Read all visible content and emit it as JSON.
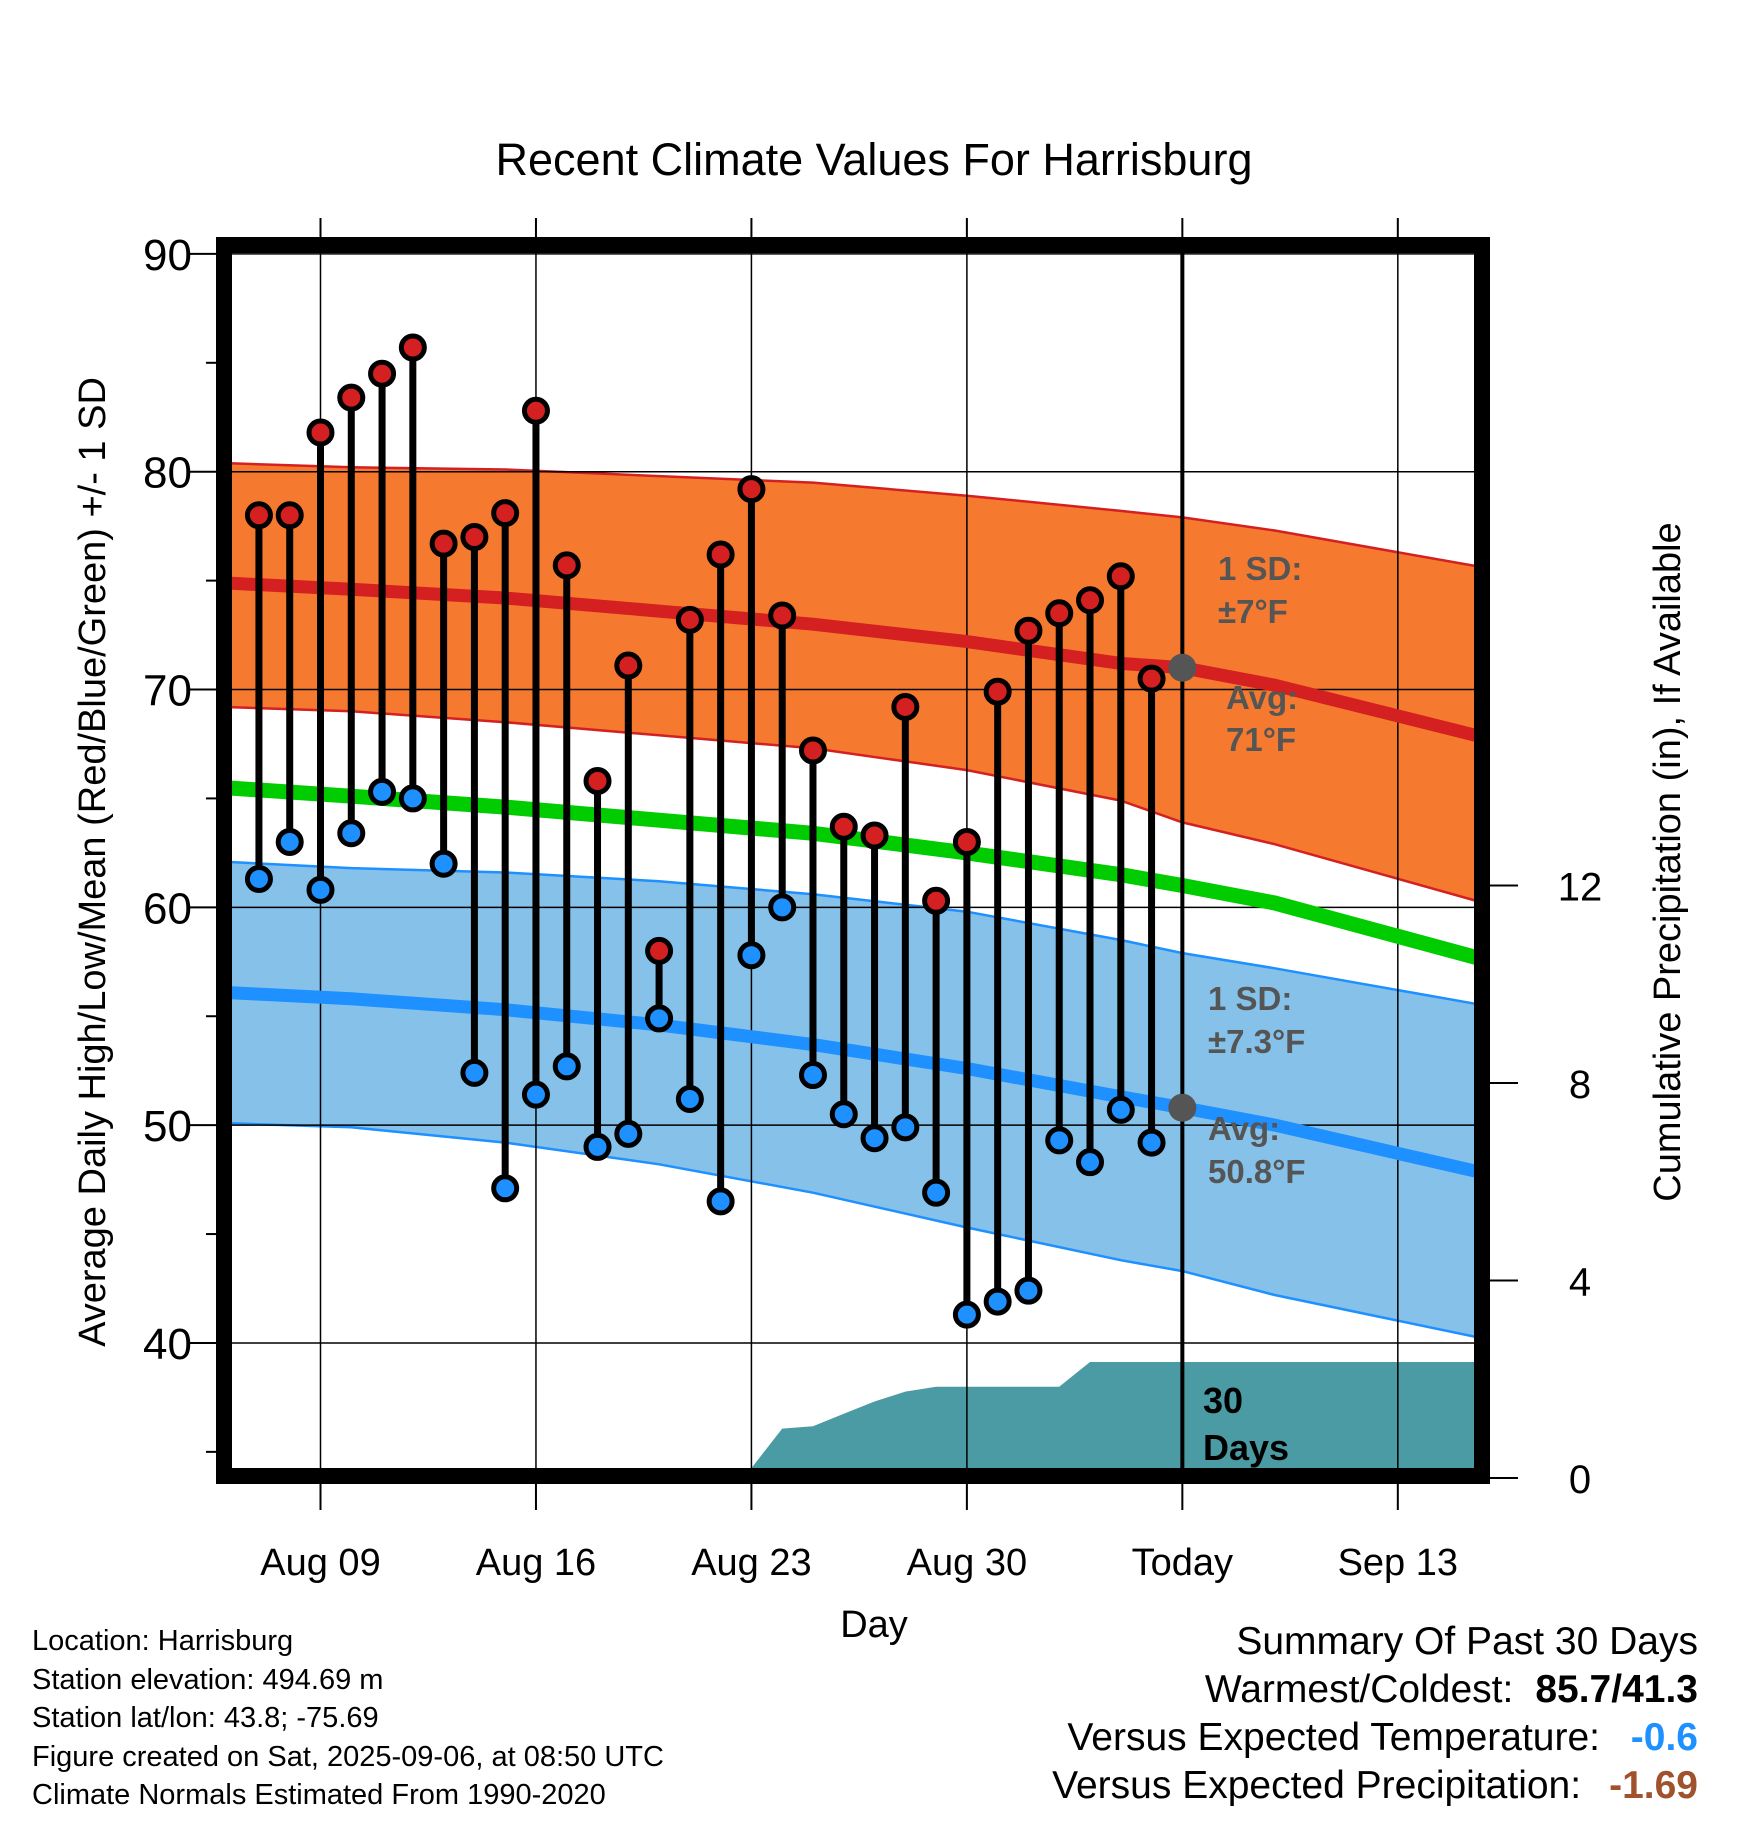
{
  "colors": {
    "high_band": "#f57a30",
    "high_band_edge": "#d42020",
    "high_normal": "#d42020",
    "mean_normal": "#00cc00",
    "low_band": "#85c1e8",
    "low_band_edge": "#1e90ff",
    "low_normal": "#1e90ff",
    "precip_fill": "#4a9ba3",
    "high_dot": "#d42020",
    "low_dot": "#1e90ff",
    "avg_marker": "#555555",
    "annotation_text": "#555555",
    "temp_anomaly": "#1e90ff",
    "precip_anomaly": "#a0522d"
  },
  "chart_data": {
    "type": "line",
    "title": "Recent Climate Values For Harrisburg",
    "xlabel": "Day",
    "ylabel": "Average Daily High/Low/Mean (Red/Blue/Green) +/- 1 SD",
    "y2label": "Cumulative Precipitation (in), If Available",
    "grid": true,
    "x_ticks": [
      {
        "day": 9,
        "label": "Aug 09"
      },
      {
        "day": 16,
        "label": "Aug 16"
      },
      {
        "day": 23,
        "label": "Aug 23"
      },
      {
        "day": 30,
        "label": "Aug 30"
      },
      {
        "day": 37,
        "label": "Today"
      },
      {
        "day": 44,
        "label": "Sep 13"
      }
    ],
    "xlim": [
      5.8,
      46.8
    ],
    "ylim": [
      33.8,
      90.5
    ],
    "y_ticks": [
      40,
      50,
      60,
      70,
      80,
      90
    ],
    "y2lim": [
      0,
      25
    ],
    "y2_ticks": [
      0,
      4,
      8,
      12
    ],
    "today_day": 37,
    "daily": {
      "days": [
        7,
        8,
        9,
        10,
        11,
        12,
        13,
        14,
        15,
        16,
        17,
        18,
        19,
        20,
        21,
        22,
        23,
        24,
        25,
        26,
        27,
        28,
        29,
        30,
        31,
        32,
        33,
        34,
        35,
        36
      ],
      "highs": [
        78.0,
        78.0,
        81.8,
        83.4,
        84.5,
        85.7,
        76.7,
        77.0,
        78.1,
        82.8,
        75.7,
        65.8,
        71.1,
        58.0,
        73.2,
        76.2,
        79.2,
        73.4,
        67.2,
        63.7,
        63.3,
        69.2,
        60.3,
        63.0,
        69.9,
        72.7,
        73.5,
        74.1,
        75.2,
        70.5
      ],
      "lows": [
        61.3,
        63.0,
        60.8,
        63.4,
        65.3,
        65.0,
        62.0,
        52.4,
        47.1,
        51.4,
        52.7,
        49.0,
        49.6,
        54.9,
        51.2,
        46.5,
        57.8,
        60.0,
        52.3,
        50.5,
        49.4,
        49.9,
        46.9,
        41.3,
        41.9,
        42.4,
        49.3,
        48.3,
        50.7,
        49.2
      ]
    },
    "normals": {
      "days": [
        5.8,
        10,
        15,
        20,
        25,
        30,
        35,
        37,
        40,
        46.8
      ],
      "high_avg": [
        74.9,
        74.6,
        74.2,
        73.6,
        73.0,
        72.2,
        71.2,
        71.0,
        70.2,
        67.8
      ],
      "high_upper": [
        80.4,
        80.2,
        80.1,
        79.8,
        79.5,
        78.9,
        78.2,
        77.9,
        77.3,
        75.6
      ],
      "high_lower": [
        69.2,
        69.0,
        68.5,
        67.9,
        67.3,
        66.3,
        64.9,
        63.9,
        62.9,
        60.2
      ],
      "mean_avg": [
        65.5,
        65.1,
        64.6,
        64.0,
        63.4,
        62.5,
        61.5,
        61.0,
        60.2,
        57.6
      ],
      "low_avg": [
        56.1,
        55.8,
        55.3,
        54.6,
        53.7,
        52.6,
        51.3,
        50.8,
        50.0,
        47.8
      ],
      "low_upper": [
        62.1,
        61.8,
        61.6,
        61.2,
        60.6,
        59.8,
        58.5,
        57.9,
        57.2,
        55.5
      ],
      "low_lower": [
        50.1,
        49.9,
        49.2,
        48.2,
        46.9,
        45.3,
        43.8,
        43.3,
        42.2,
        40.2
      ]
    },
    "precip_cumulative": {
      "days": [
        5.8,
        19.5,
        20,
        23,
        24,
        25,
        26,
        27,
        28,
        29,
        33,
        34,
        35,
        46.8
      ],
      "values": [
        0,
        0,
        0.15,
        0.2,
        1.0,
        1.05,
        1.3,
        1.55,
        1.75,
        1.85,
        1.85,
        2.35,
        2.35,
        2.35
      ]
    },
    "annotations": {
      "high_sd": "1 SD:",
      "high_sd_value": "±7°F",
      "high_avg_label": "Avg:",
      "high_avg_value": "71°F",
      "low_sd": "1 SD:",
      "low_sd_value": "±7.3°F",
      "low_avg_label": "Avg:",
      "low_avg_value": "50.8°F",
      "precip_period": "30",
      "precip_period_unit": "Days"
    }
  },
  "info": {
    "location": "Location: Harrisburg",
    "elevation": "Station elevation: 494.69 m",
    "latlon": "Station lat/lon: 43.8; -75.69",
    "created": "Figure created on Sat, 2025-09-06, at 08:50 UTC",
    "normals": "Climate Normals Estimated From 1990-2020"
  },
  "summary": {
    "title": "Summary Of Past 30 Days",
    "warm_cold_label": "Warmest/Coldest:",
    "warm_cold_value": "85.7/41.3",
    "temp_label": "Versus Expected Temperature:",
    "temp_value": "-0.6",
    "precip_label": "Versus Expected Precipitation:",
    "precip_value": "-1.69"
  }
}
